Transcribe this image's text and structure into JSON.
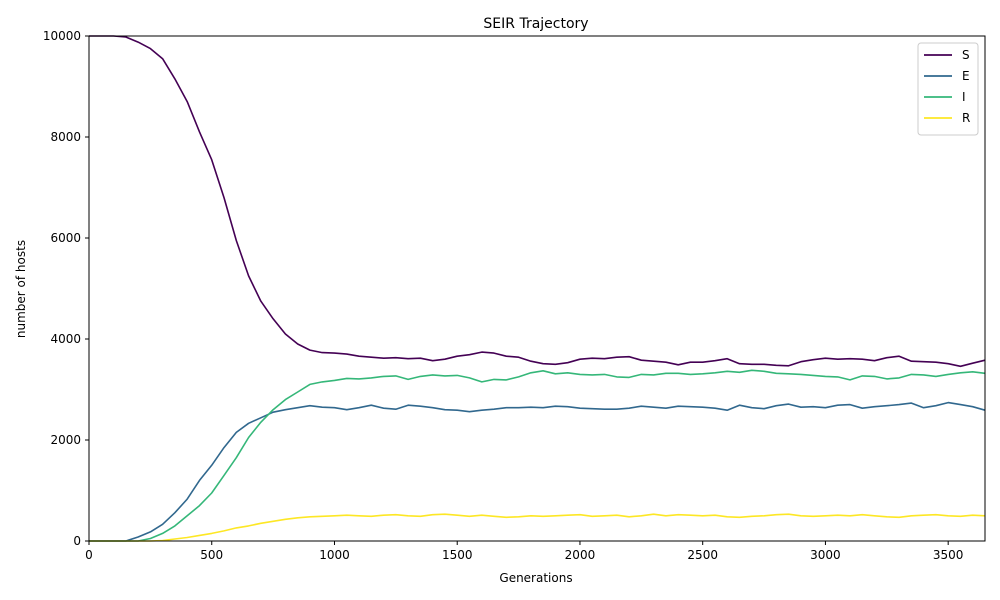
{
  "chart_data": {
    "type": "line",
    "title": "SEIR Trajectory",
    "xlabel": "Generations",
    "ylabel": "number of hosts",
    "xlim": [
      0,
      3650
    ],
    "ylim": [
      0,
      10000
    ],
    "xticks": [
      0,
      500,
      1000,
      1500,
      2000,
      2500,
      3000,
      3500
    ],
    "yticks": [
      0,
      2000,
      4000,
      6000,
      8000,
      10000
    ],
    "grid": false,
    "legend_position": "top-right",
    "series": [
      {
        "name": "S",
        "color": "#440154",
        "points": [
          [
            0,
            10000
          ],
          [
            100,
            10000
          ],
          [
            150,
            9980
          ],
          [
            200,
            9880
          ],
          [
            250,
            9750
          ],
          [
            300,
            9550
          ],
          [
            350,
            9150
          ],
          [
            400,
            8700
          ],
          [
            450,
            8100
          ],
          [
            500,
            7550
          ],
          [
            550,
            6800
          ],
          [
            600,
            5950
          ],
          [
            650,
            5250
          ],
          [
            700,
            4750
          ],
          [
            750,
            4400
          ],
          [
            800,
            4100
          ],
          [
            850,
            3900
          ],
          [
            900,
            3780
          ],
          [
            950,
            3730
          ],
          [
            1000,
            3720
          ],
          [
            1050,
            3700
          ],
          [
            1100,
            3660
          ],
          [
            1150,
            3640
          ],
          [
            1200,
            3620
          ],
          [
            1250,
            3630
          ],
          [
            1300,
            3610
          ],
          [
            1350,
            3620
          ],
          [
            1400,
            3570
          ],
          [
            1450,
            3600
          ],
          [
            1500,
            3660
          ],
          [
            1550,
            3690
          ],
          [
            1600,
            3740
          ],
          [
            1650,
            3720
          ],
          [
            1700,
            3660
          ],
          [
            1750,
            3640
          ],
          [
            1800,
            3560
          ],
          [
            1850,
            3510
          ],
          [
            1900,
            3500
          ],
          [
            1950,
            3530
          ],
          [
            2000,
            3600
          ],
          [
            2050,
            3620
          ],
          [
            2100,
            3610
          ],
          [
            2150,
            3640
          ],
          [
            2200,
            3650
          ],
          [
            2250,
            3580
          ],
          [
            2300,
            3560
          ],
          [
            2350,
            3540
          ],
          [
            2400,
            3490
          ],
          [
            2450,
            3540
          ],
          [
            2500,
            3540
          ],
          [
            2550,
            3570
          ],
          [
            2600,
            3610
          ],
          [
            2650,
            3510
          ],
          [
            2700,
            3500
          ],
          [
            2750,
            3500
          ],
          [
            2800,
            3480
          ],
          [
            2850,
            3470
          ],
          [
            2900,
            3550
          ],
          [
            2950,
            3590
          ],
          [
            3000,
            3620
          ],
          [
            3050,
            3600
          ],
          [
            3100,
            3610
          ],
          [
            3150,
            3600
          ],
          [
            3200,
            3570
          ],
          [
            3250,
            3630
          ],
          [
            3300,
            3660
          ],
          [
            3350,
            3560
          ],
          [
            3400,
            3550
          ],
          [
            3450,
            3540
          ],
          [
            3500,
            3510
          ],
          [
            3550,
            3460
          ],
          [
            3600,
            3520
          ],
          [
            3650,
            3580
          ]
        ]
      },
      {
        "name": "E",
        "color": "#31688e",
        "points": [
          [
            0,
            0
          ],
          [
            150,
            0
          ],
          [
            200,
            80
          ],
          [
            250,
            180
          ],
          [
            300,
            330
          ],
          [
            350,
            560
          ],
          [
            400,
            830
          ],
          [
            450,
            1200
          ],
          [
            500,
            1500
          ],
          [
            550,
            1850
          ],
          [
            600,
            2150
          ],
          [
            650,
            2330
          ],
          [
            700,
            2440
          ],
          [
            750,
            2550
          ],
          [
            800,
            2600
          ],
          [
            850,
            2640
          ],
          [
            900,
            2680
          ],
          [
            950,
            2650
          ],
          [
            1000,
            2640
          ],
          [
            1050,
            2600
          ],
          [
            1100,
            2640
          ],
          [
            1150,
            2690
          ],
          [
            1200,
            2630
          ],
          [
            1250,
            2610
          ],
          [
            1300,
            2690
          ],
          [
            1350,
            2670
          ],
          [
            1400,
            2640
          ],
          [
            1450,
            2600
          ],
          [
            1500,
            2590
          ],
          [
            1550,
            2560
          ],
          [
            1600,
            2590
          ],
          [
            1650,
            2610
          ],
          [
            1700,
            2640
          ],
          [
            1750,
            2640
          ],
          [
            1800,
            2650
          ],
          [
            1850,
            2640
          ],
          [
            1900,
            2670
          ],
          [
            1950,
            2660
          ],
          [
            2000,
            2630
          ],
          [
            2050,
            2620
          ],
          [
            2100,
            2610
          ],
          [
            2150,
            2610
          ],
          [
            2200,
            2630
          ],
          [
            2250,
            2670
          ],
          [
            2300,
            2650
          ],
          [
            2350,
            2630
          ],
          [
            2400,
            2670
          ],
          [
            2450,
            2660
          ],
          [
            2500,
            2650
          ],
          [
            2550,
            2630
          ],
          [
            2600,
            2590
          ],
          [
            2650,
            2690
          ],
          [
            2700,
            2640
          ],
          [
            2750,
            2620
          ],
          [
            2800,
            2680
          ],
          [
            2850,
            2710
          ],
          [
            2900,
            2650
          ],
          [
            2950,
            2660
          ],
          [
            3000,
            2640
          ],
          [
            3050,
            2690
          ],
          [
            3100,
            2700
          ],
          [
            3150,
            2630
          ],
          [
            3200,
            2660
          ],
          [
            3250,
            2680
          ],
          [
            3300,
            2700
          ],
          [
            3350,
            2730
          ],
          [
            3400,
            2640
          ],
          [
            3450,
            2680
          ],
          [
            3500,
            2740
          ],
          [
            3550,
            2700
          ],
          [
            3600,
            2660
          ],
          [
            3650,
            2590
          ]
        ]
      },
      {
        "name": "I",
        "color": "#35b779",
        "points": [
          [
            0,
            0
          ],
          [
            200,
            0
          ],
          [
            250,
            50
          ],
          [
            300,
            150
          ],
          [
            350,
            300
          ],
          [
            400,
            500
          ],
          [
            450,
            700
          ],
          [
            500,
            950
          ],
          [
            550,
            1300
          ],
          [
            600,
            1650
          ],
          [
            650,
            2050
          ],
          [
            700,
            2350
          ],
          [
            750,
            2600
          ],
          [
            800,
            2800
          ],
          [
            850,
            2950
          ],
          [
            900,
            3100
          ],
          [
            950,
            3150
          ],
          [
            1000,
            3180
          ],
          [
            1050,
            3220
          ],
          [
            1100,
            3210
          ],
          [
            1150,
            3230
          ],
          [
            1200,
            3260
          ],
          [
            1250,
            3270
          ],
          [
            1300,
            3200
          ],
          [
            1350,
            3260
          ],
          [
            1400,
            3290
          ],
          [
            1450,
            3270
          ],
          [
            1500,
            3280
          ],
          [
            1550,
            3230
          ],
          [
            1600,
            3150
          ],
          [
            1650,
            3200
          ],
          [
            1700,
            3190
          ],
          [
            1750,
            3250
          ],
          [
            1800,
            3330
          ],
          [
            1850,
            3370
          ],
          [
            1900,
            3310
          ],
          [
            1950,
            3330
          ],
          [
            2000,
            3300
          ],
          [
            2050,
            3290
          ],
          [
            2100,
            3300
          ],
          [
            2150,
            3250
          ],
          [
            2200,
            3240
          ],
          [
            2250,
            3300
          ],
          [
            2300,
            3290
          ],
          [
            2350,
            3320
          ],
          [
            2400,
            3320
          ],
          [
            2450,
            3300
          ],
          [
            2500,
            3310
          ],
          [
            2550,
            3330
          ],
          [
            2600,
            3360
          ],
          [
            2650,
            3340
          ],
          [
            2700,
            3380
          ],
          [
            2750,
            3360
          ],
          [
            2800,
            3320
          ],
          [
            2850,
            3310
          ],
          [
            2900,
            3300
          ],
          [
            2950,
            3280
          ],
          [
            3000,
            3260
          ],
          [
            3050,
            3250
          ],
          [
            3100,
            3190
          ],
          [
            3150,
            3270
          ],
          [
            3200,
            3260
          ],
          [
            3250,
            3210
          ],
          [
            3300,
            3230
          ],
          [
            3350,
            3300
          ],
          [
            3400,
            3290
          ],
          [
            3450,
            3260
          ],
          [
            3500,
            3300
          ],
          [
            3550,
            3330
          ],
          [
            3600,
            3350
          ],
          [
            3650,
            3320
          ]
        ]
      },
      {
        "name": "R",
        "color": "#fde725",
        "points": [
          [
            0,
            0
          ],
          [
            250,
            0
          ],
          [
            300,
            10
          ],
          [
            350,
            40
          ],
          [
            400,
            70
          ],
          [
            450,
            110
          ],
          [
            500,
            150
          ],
          [
            550,
            200
          ],
          [
            600,
            260
          ],
          [
            650,
            300
          ],
          [
            700,
            350
          ],
          [
            750,
            390
          ],
          [
            800,
            430
          ],
          [
            850,
            460
          ],
          [
            900,
            480
          ],
          [
            950,
            490
          ],
          [
            1000,
            500
          ],
          [
            1050,
            510
          ],
          [
            1100,
            500
          ],
          [
            1150,
            490
          ],
          [
            1200,
            510
          ],
          [
            1250,
            520
          ],
          [
            1300,
            500
          ],
          [
            1350,
            490
          ],
          [
            1400,
            520
          ],
          [
            1450,
            530
          ],
          [
            1500,
            510
          ],
          [
            1550,
            490
          ],
          [
            1600,
            510
          ],
          [
            1650,
            490
          ],
          [
            1700,
            470
          ],
          [
            1750,
            480
          ],
          [
            1800,
            500
          ],
          [
            1850,
            490
          ],
          [
            1900,
            500
          ],
          [
            1950,
            510
          ],
          [
            2000,
            520
          ],
          [
            2050,
            490
          ],
          [
            2100,
            500
          ],
          [
            2150,
            510
          ],
          [
            2200,
            480
          ],
          [
            2250,
            500
          ],
          [
            2300,
            530
          ],
          [
            2350,
            500
          ],
          [
            2400,
            520
          ],
          [
            2450,
            510
          ],
          [
            2500,
            500
          ],
          [
            2550,
            510
          ],
          [
            2600,
            480
          ],
          [
            2650,
            470
          ],
          [
            2700,
            490
          ],
          [
            2750,
            500
          ],
          [
            2800,
            520
          ],
          [
            2850,
            530
          ],
          [
            2900,
            500
          ],
          [
            2950,
            490
          ],
          [
            3000,
            500
          ],
          [
            3050,
            510
          ],
          [
            3100,
            500
          ],
          [
            3150,
            520
          ],
          [
            3200,
            500
          ],
          [
            3250,
            480
          ],
          [
            3300,
            470
          ],
          [
            3350,
            500
          ],
          [
            3400,
            510
          ],
          [
            3450,
            520
          ],
          [
            3500,
            500
          ],
          [
            3550,
            490
          ],
          [
            3600,
            510
          ],
          [
            3650,
            500
          ]
        ]
      }
    ]
  }
}
